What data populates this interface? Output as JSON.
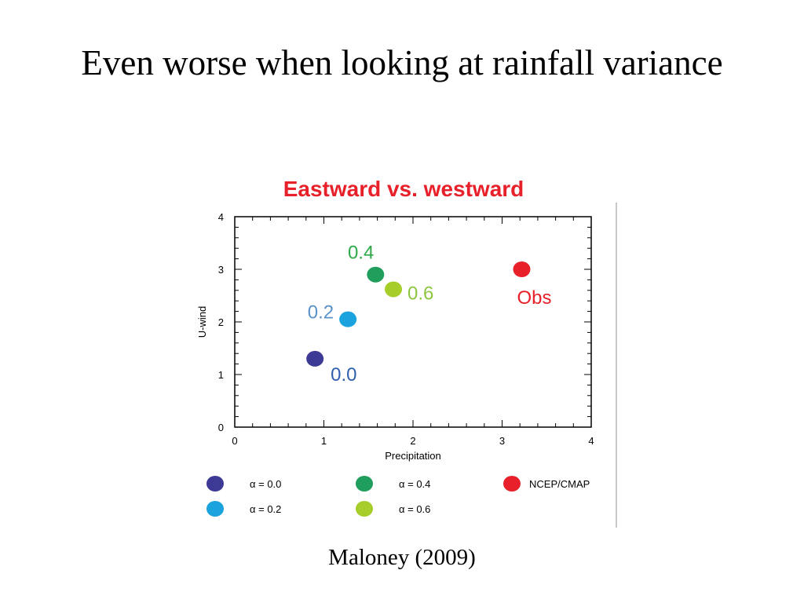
{
  "slide": {
    "title": "Even worse when looking at rainfall variance",
    "credit": "Maloney (2009)"
  },
  "chart_data": {
    "type": "scatter",
    "title": "Eastward vs. westward",
    "title_color": "#e8202a",
    "xlabel": "Precipitation",
    "ylabel": "U-wind",
    "xlim": [
      0,
      4
    ],
    "ylim": [
      0,
      4
    ],
    "xticks": [
      0,
      1,
      2,
      3,
      4
    ],
    "yticks": [
      0,
      1,
      2,
      3,
      4
    ],
    "grid": false,
    "legend_position": "bottom",
    "series": [
      {
        "name": "α = 0.0",
        "label": "0.0",
        "x": 0.9,
        "y": 1.3,
        "color": "#3d3a96",
        "label_color": "#2f5fae"
      },
      {
        "name": "α = 0.2",
        "label": "0.2",
        "x": 1.27,
        "y": 2.05,
        "color": "#1aa3dc",
        "label_color": "#5b93c9"
      },
      {
        "name": "α = 0.4",
        "label": "0.4",
        "x": 1.58,
        "y": 2.9,
        "color": "#1f9e5c",
        "label_color": "#2fa84a"
      },
      {
        "name": "α = 0.6",
        "label": "0.6",
        "x": 1.78,
        "y": 2.62,
        "color": "#a6cd2a",
        "label_color": "#8cc63f"
      },
      {
        "name": "NCEP/CMAP",
        "label": "Obs",
        "x": 3.22,
        "y": 3.0,
        "color": "#e8202a",
        "label_color": "#e8202a"
      }
    ]
  }
}
